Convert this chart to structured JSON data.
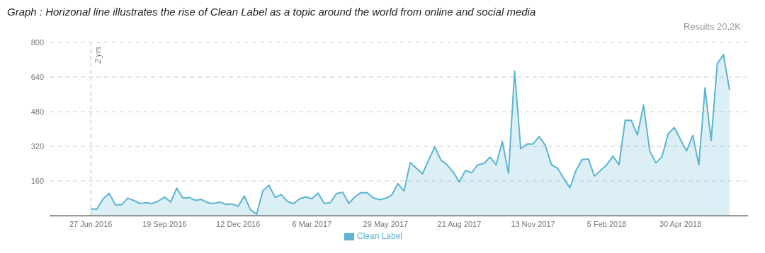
{
  "chart_data": {
    "type": "area",
    "title": "Graph : Horizonal line illustrates the rise of Clean Label as a topic around the world from online and social media",
    "annotations": [
      "Results 20,2K"
    ],
    "x": [
      "2016-06-27",
      "2016-07-04",
      "2016-07-11",
      "2016-07-18",
      "2016-07-25",
      "2016-08-01",
      "2016-08-08",
      "2016-08-15",
      "2016-08-22",
      "2016-08-29",
      "2016-09-05",
      "2016-09-12",
      "2016-09-19",
      "2016-09-26",
      "2016-10-03",
      "2016-10-10",
      "2016-10-17",
      "2016-10-24",
      "2016-10-31",
      "2016-11-07",
      "2016-11-14",
      "2016-11-21",
      "2016-11-28",
      "2016-12-05",
      "2016-12-12",
      "2016-12-19",
      "2016-12-26",
      "2017-01-02",
      "2017-01-09",
      "2017-01-16",
      "2017-01-23",
      "2017-01-30",
      "2017-02-06",
      "2017-02-13",
      "2017-02-20",
      "2017-02-27",
      "2017-03-06",
      "2017-03-13",
      "2017-03-20",
      "2017-03-27",
      "2017-04-03",
      "2017-04-10",
      "2017-04-17",
      "2017-04-24",
      "2017-05-01",
      "2017-05-08",
      "2017-05-15",
      "2017-05-22",
      "2017-05-29",
      "2017-06-05",
      "2017-06-12",
      "2017-06-19",
      "2017-06-26",
      "2017-07-03",
      "2017-07-10",
      "2017-07-17",
      "2017-07-24",
      "2017-07-31",
      "2017-08-07",
      "2017-08-14",
      "2017-08-21",
      "2017-08-28",
      "2017-09-04",
      "2017-09-11",
      "2017-09-18",
      "2017-09-25",
      "2017-10-02",
      "2017-10-09",
      "2017-10-16",
      "2017-10-23",
      "2017-10-30",
      "2017-11-06",
      "2017-11-13",
      "2017-11-20",
      "2017-11-27",
      "2017-12-04",
      "2017-12-11",
      "2017-12-18",
      "2017-12-25",
      "2018-01-01",
      "2018-01-08",
      "2018-01-15",
      "2018-01-22",
      "2018-01-29",
      "2018-02-05",
      "2018-02-12",
      "2018-02-19",
      "2018-02-26",
      "2018-03-05",
      "2018-03-12",
      "2018-03-19",
      "2018-03-26",
      "2018-04-02",
      "2018-04-09",
      "2018-04-16",
      "2018-04-23",
      "2018-04-30",
      "2018-05-07",
      "2018-05-14",
      "2018-05-21",
      "2018-05-28",
      "2018-06-04",
      "2018-06-11",
      "2018-06-18",
      "2018-06-25"
    ],
    "series": [
      {
        "name": "Clean Label",
        "color": "#5ab4d2",
        "values": [
          31,
          31,
          78,
          103,
          50,
          50,
          81,
          70,
          56,
          60,
          56,
          67,
          86,
          63,
          127,
          81,
          84,
          71,
          75,
          60,
          56,
          63,
          52,
          54,
          44,
          91,
          27,
          7,
          115,
          141,
          84,
          97,
          66,
          55,
          78,
          87,
          78,
          104,
          57,
          60,
          102,
          108,
          57,
          87,
          107,
          106,
          82,
          74,
          80,
          95,
          148,
          114,
          245,
          219,
          193,
          257,
          318,
          257,
          235,
          201,
          156,
          209,
          198,
          235,
          241,
          270,
          235,
          343,
          196,
          667,
          309,
          331,
          331,
          365,
          325,
          235,
          219,
          172,
          129,
          209,
          259,
          262,
          182,
          209,
          235,
          275,
          235,
          440,
          440,
          373,
          511,
          299,
          244,
          272,
          378,
          407,
          352,
          299,
          371,
          235,
          590,
          347,
          702,
          744,
          580
        ]
      }
    ],
    "xlim": [
      "2016-05-11",
      "2018-07-16"
    ],
    "xticks": [
      {
        "value": "2016-06-27",
        "label": "27 Jun 2016"
      },
      {
        "value": "2016-09-19",
        "label": "19 Sep 2016"
      },
      {
        "value": "2016-12-12",
        "label": "12 Dec 2016"
      },
      {
        "value": "2017-03-06",
        "label": "6 Mar 2017"
      },
      {
        "value": "2017-05-29",
        "label": "29 May 2017"
      },
      {
        "value": "2017-08-21",
        "label": "21 Aug 2017"
      },
      {
        "value": "2017-11-13",
        "label": "13 Nov 2017"
      },
      {
        "value": "2018-02-05",
        "label": "5 Feb 2018"
      },
      {
        "value": "2018-04-30",
        "label": "30 Apr 2018"
      }
    ],
    "ylim": [
      0,
      800
    ],
    "yticks": [
      160,
      320,
      480,
      640,
      800
    ],
    "grid": "y",
    "ref_lines": [
      {
        "axis": "x",
        "value": "2016-06-27",
        "label": "2 yrs",
        "color": "#bbbbbb",
        "line_style": "dashed"
      }
    ],
    "legend": "bottom",
    "marker": "none",
    "line_style": "solid"
  }
}
